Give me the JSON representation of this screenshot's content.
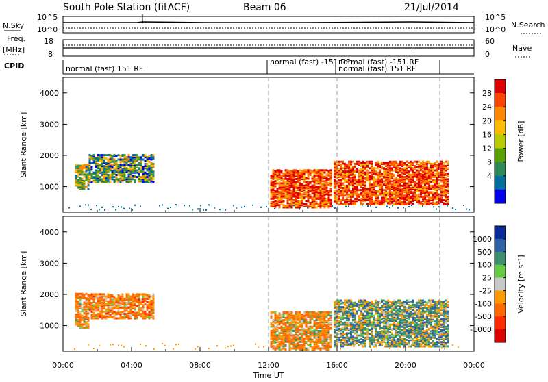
{
  "header": {
    "station": "South Pole Station (fitACF)",
    "beam": "Beam 06",
    "date": "21/Jul/2014"
  },
  "panels": {
    "nsky": {
      "left_label": "N.Sky",
      "right_label": "N.Search",
      "left_ticks": [
        "10^5",
        "10^0"
      ],
      "right_ticks": [
        "10^5",
        "10^0"
      ]
    },
    "freq": {
      "left_label_1": "Freq.",
      "left_label_2": "[MHz]",
      "right_label": "Nave",
      "left_ticks": [
        "18",
        "8"
      ],
      "right_ticks": [
        "60",
        "0"
      ]
    },
    "cpid": {
      "label": "CPID",
      "segments": [
        "normal (fast) 151 RF",
        "normal (fast) -151 RF",
        "normal (fast) 151 RF",
        "normal (fast) -151 RF"
      ]
    }
  },
  "colorbars": {
    "power": {
      "title": "Power [dB]",
      "labels": [
        "28",
        "24",
        "20",
        "16",
        "12",
        "8",
        "4"
      ],
      "colors": [
        "#e00000",
        "#ff4400",
        "#ff8800",
        "#ffbb00",
        "#b8cc00",
        "#5aa000",
        "#2e8b57",
        "#006fa0",
        "#0000ee"
      ]
    },
    "velocity": {
      "title": "Velocity [m s⁻¹]",
      "labels": [
        "1000",
        "500",
        "100",
        "25",
        "-25",
        "-100",
        "-500",
        "-1000"
      ],
      "colors": [
        "#0a2a9a",
        "#2f63a8",
        "#3d8f6e",
        "#66cc44",
        "#c8c8c8",
        "#ff9900",
        "#ff6a00",
        "#ff2a00",
        "#e00000"
      ]
    }
  },
  "chart_data": [
    {
      "type": "heatmap",
      "title": "",
      "xlabel": "Time UT",
      "ylabel": "Slant Range [km]",
      "xlim": [
        "00:00",
        "24:00"
      ],
      "ylim": [
        180,
        4500
      ],
      "x_ticks": [
        "00:00",
        "04:00",
        "08:00",
        "12:00",
        "16:00",
        "20:00",
        "00:00"
      ],
      "y_ticks": [
        1000,
        2000,
        3000,
        4000
      ],
      "colorbar": "Power [dB]",
      "regions": [
        {
          "t_start": 0.7,
          "t_end": 1.5,
          "r_min": 900,
          "r_max": 1700,
          "level": 14
        },
        {
          "t_start": 1.5,
          "t_end": 5.3,
          "r_min": 1100,
          "r_max": 2000,
          "level": 12
        },
        {
          "t_start": 12.1,
          "t_end": 15.6,
          "r_min": 300,
          "r_max": 1500,
          "level": 24
        },
        {
          "t_start": 15.8,
          "t_end": 22.5,
          "r_min": 400,
          "r_max": 1800,
          "level": 24
        }
      ],
      "vertical_markers": [
        12.0,
        16.0,
        22.0
      ]
    },
    {
      "type": "heatmap",
      "title": "",
      "xlabel": "Time UT",
      "ylabel": "Slant Range [km]",
      "xlim": [
        "00:00",
        "24:00"
      ],
      "ylim": [
        180,
        4500
      ],
      "x_ticks": [
        "00:00",
        "04:00",
        "08:00",
        "12:00",
        "16:00",
        "20:00",
        "00:00"
      ],
      "y_ticks": [
        1000,
        2000,
        3000,
        4000
      ],
      "colorbar": "Velocity [m s-1]",
      "regions": [
        {
          "t_start": 0.7,
          "t_end": 1.5,
          "r_min": 900,
          "r_max": 2000,
          "level": -150
        },
        {
          "t_start": 1.5,
          "t_end": 5.3,
          "r_min": 1200,
          "r_max": 2000,
          "level": -200
        },
        {
          "t_start": 12.1,
          "t_end": 15.6,
          "r_min": 200,
          "r_max": 1400,
          "level": -150
        },
        {
          "t_start": 15.8,
          "t_end": 22.5,
          "r_min": 300,
          "r_max": 1800,
          "level": 100
        }
      ],
      "vertical_markers": [
        12.0,
        16.0,
        22.0
      ]
    }
  ]
}
